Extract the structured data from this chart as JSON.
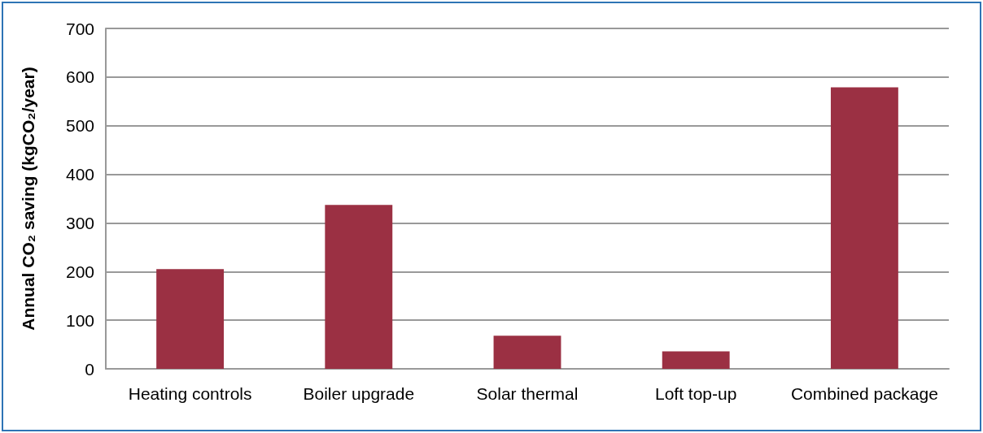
{
  "chart_data": {
    "type": "bar",
    "categories": [
      "Heating controls",
      "Boiler upgrade",
      "Solar thermal",
      "Loft top-up",
      "Combined package"
    ],
    "values": [
      205,
      337,
      68,
      36,
      579
    ],
    "color": "#9b3043",
    "ylabel": "Annual CO₂ saving (kgCO₂/year)",
    "ylim": [
      0,
      700
    ],
    "yticks": [
      0,
      100,
      200,
      300,
      400,
      500,
      600,
      700
    ],
    "grid": "y"
  }
}
